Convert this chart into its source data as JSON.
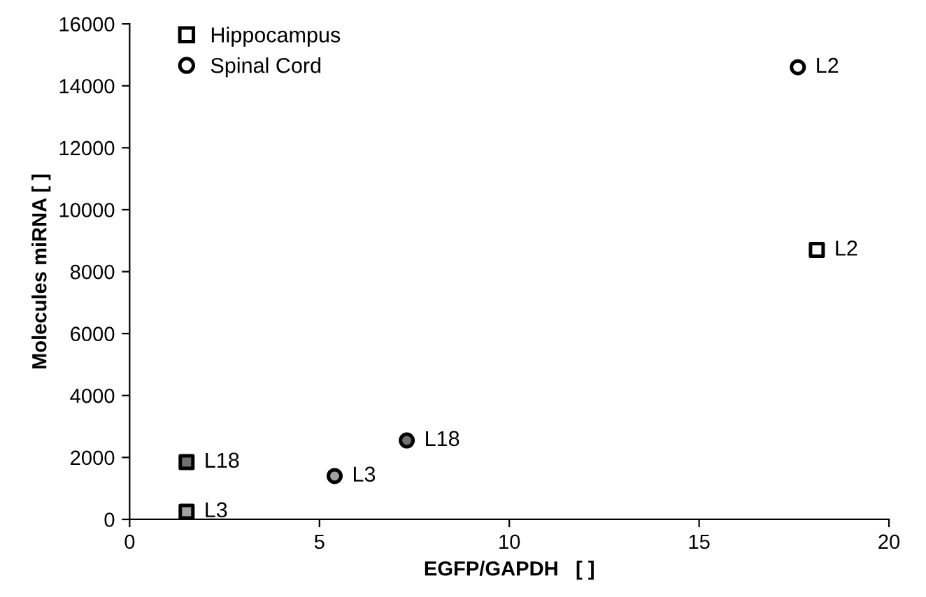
{
  "chart_data": {
    "type": "scatter",
    "xlabel": "EGFP/GAPDH   [ ]",
    "ylabel": "Molecules miRNA [ ]",
    "xlim": [
      0,
      20
    ],
    "ylim": [
      0,
      16000
    ],
    "xticks": [
      0,
      5,
      10,
      15,
      20
    ],
    "yticks": [
      0,
      2000,
      4000,
      6000,
      8000,
      10000,
      12000,
      14000,
      16000
    ],
    "grid": false,
    "legend": "top left",
    "series": [
      {
        "name": "Hippocampus",
        "marker": "square",
        "color": "#ffffff",
        "x": [
          18.1,
          1.5,
          1.5
        ],
        "values": [
          8700,
          1850,
          250
        ],
        "colors": [
          "#ffffff",
          "#707070",
          "#a0a0a0"
        ]
      },
      {
        "name": "Spinal Cord",
        "marker": "circle",
        "color": "#ffffff",
        "x": [
          17.6,
          7.3,
          5.4
        ],
        "values": [
          14600,
          2550,
          1400
        ],
        "colors": [
          "#ffffff",
          "#707070",
          "#a0a0a0"
        ]
      }
    ],
    "annotations": [
      {
        "text": "L2",
        "x": 18.1,
        "y": 8700
      },
      {
        "text": "L18",
        "x": 1.5,
        "y": 1850
      },
      {
        "text": "L3",
        "x": 1.5,
        "y": 250
      },
      {
        "text": "L2",
        "x": 17.6,
        "y": 14600
      },
      {
        "text": "L18",
        "x": 7.3,
        "y": 2550
      },
      {
        "text": "L3",
        "x": 5.4,
        "y": 1400
      }
    ]
  }
}
